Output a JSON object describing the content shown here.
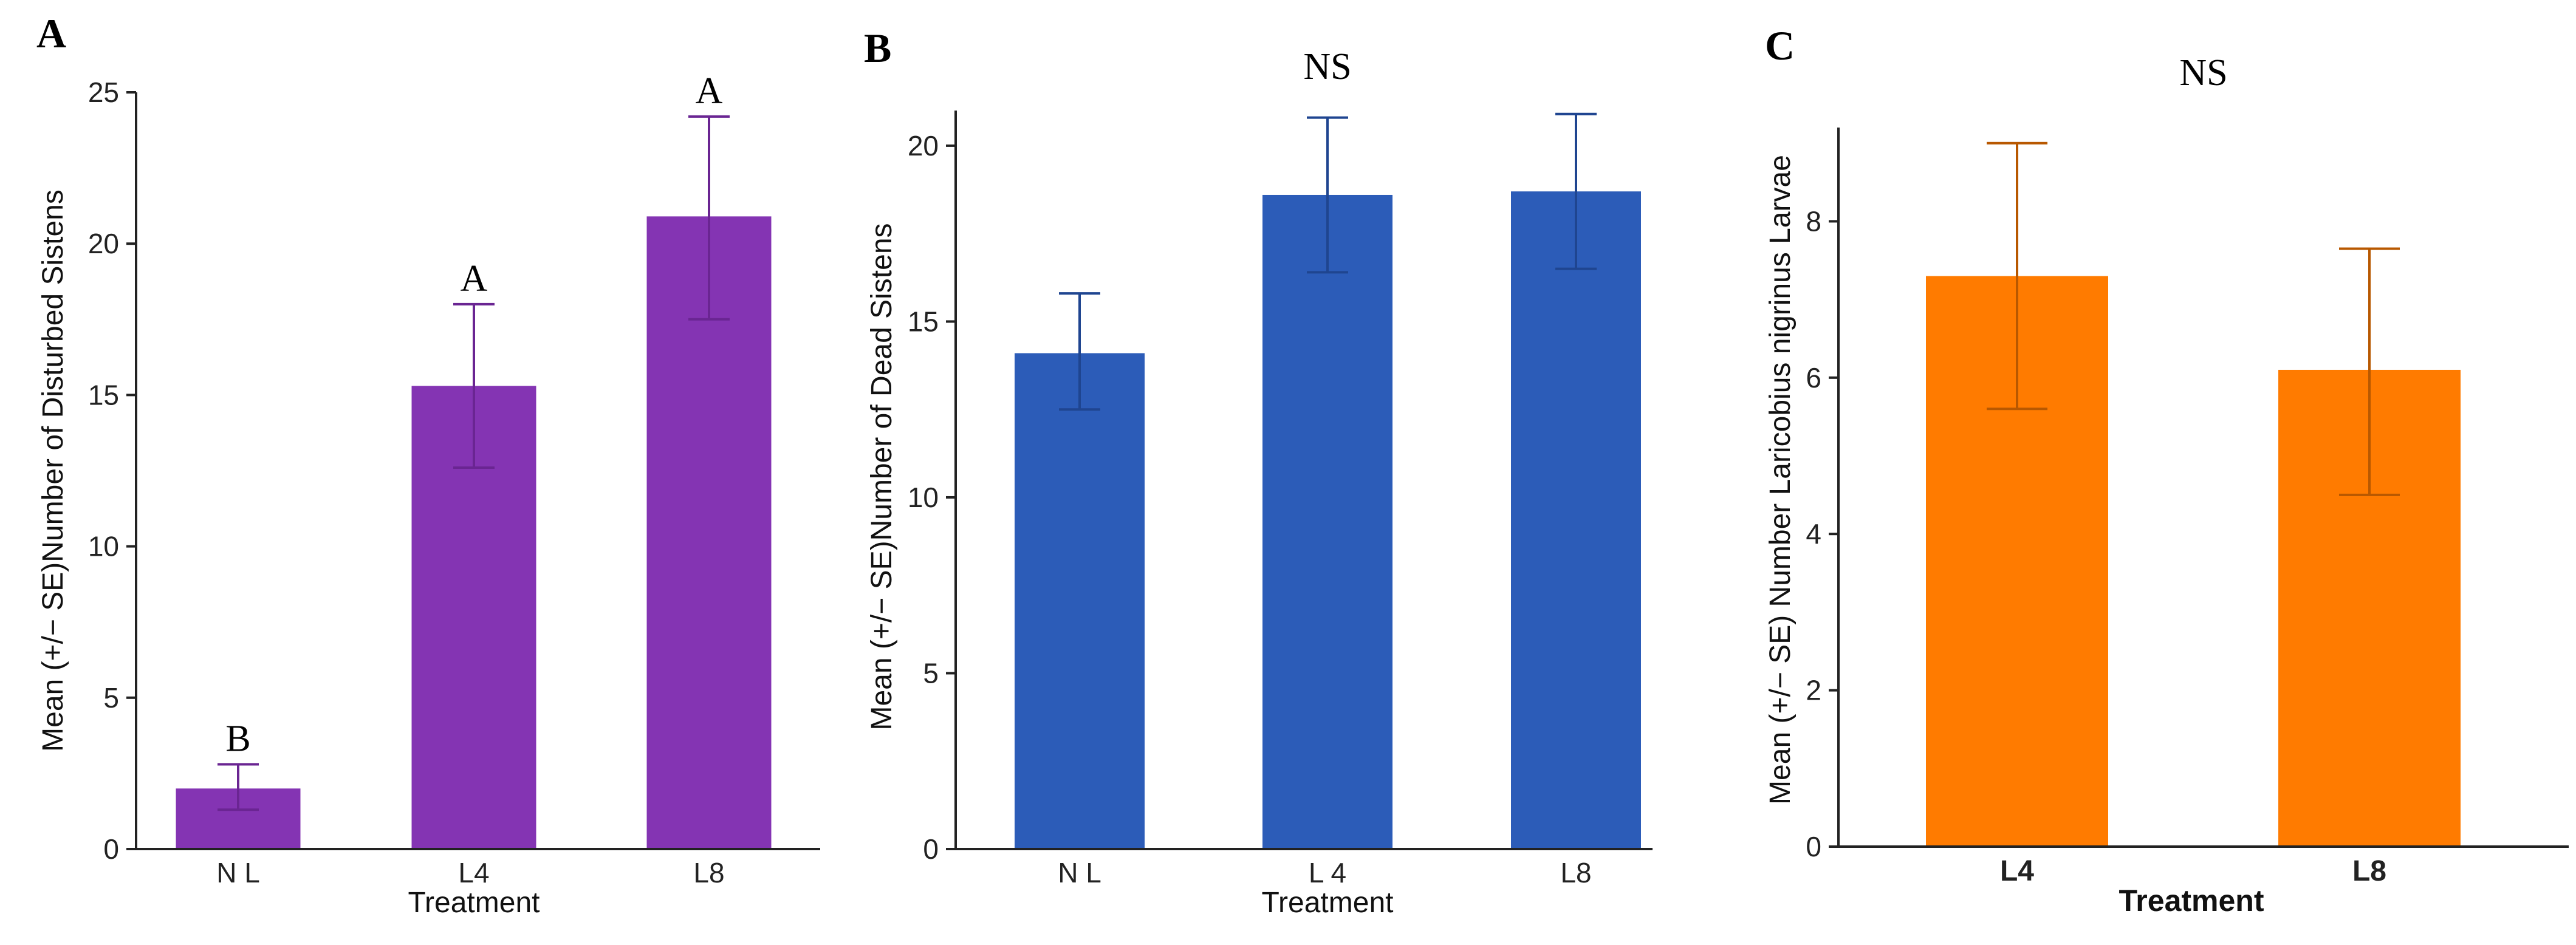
{
  "chart_data": [
    {
      "panel": "A",
      "type": "bar",
      "title": "",
      "categories": [
        "N L",
        "L4",
        "L8"
      ],
      "values": [
        2.0,
        15.3,
        20.9
      ],
      "error_bars": {
        "upper": [
          2.8,
          18.0,
          24.2
        ],
        "lower": [
          1.3,
          12.6,
          17.5
        ]
      },
      "significance_labels": [
        "B",
        "A",
        "A"
      ],
      "xlabel": "Treatment",
      "ylabel": "Mean (+/− SE)Number of Disturbed Sistens",
      "ylim": [
        0,
        25
      ],
      "yticks": [
        0,
        5,
        10,
        15,
        20,
        25
      ],
      "color": "#8434B3"
    },
    {
      "panel": "B",
      "type": "bar",
      "title": "NS",
      "categories": [
        "N L",
        "L 4",
        "L8"
      ],
      "values": [
        14.1,
        18.6,
        18.7
      ],
      "error_bars": {
        "upper": [
          15.8,
          20.8,
          20.9
        ],
        "lower": [
          12.5,
          16.4,
          16.5
        ]
      },
      "xlabel": "Treatment",
      "ylabel": "Mean (+/− SE)Number of Dead Sistens",
      "ylim": [
        0,
        21
      ],
      "yticks": [
        0,
        5,
        10,
        15,
        20
      ],
      "color": "#2C5CB8"
    },
    {
      "panel": "C",
      "type": "bar",
      "title": "NS",
      "categories": [
        "L4",
        "L8"
      ],
      "values": [
        7.3,
        6.1
      ],
      "error_bars": {
        "upper": [
          9.0,
          7.65
        ],
        "lower": [
          5.6,
          4.5
        ]
      },
      "xlabel": "Treatment",
      "ylabel": "Mean (+/− SE) Number Laricobius nigrinus Larvae",
      "ylim": [
        0,
        9.2
      ],
      "yticks": [
        0,
        2,
        4,
        6,
        8
      ],
      "color": "#FF7B00"
    }
  ]
}
